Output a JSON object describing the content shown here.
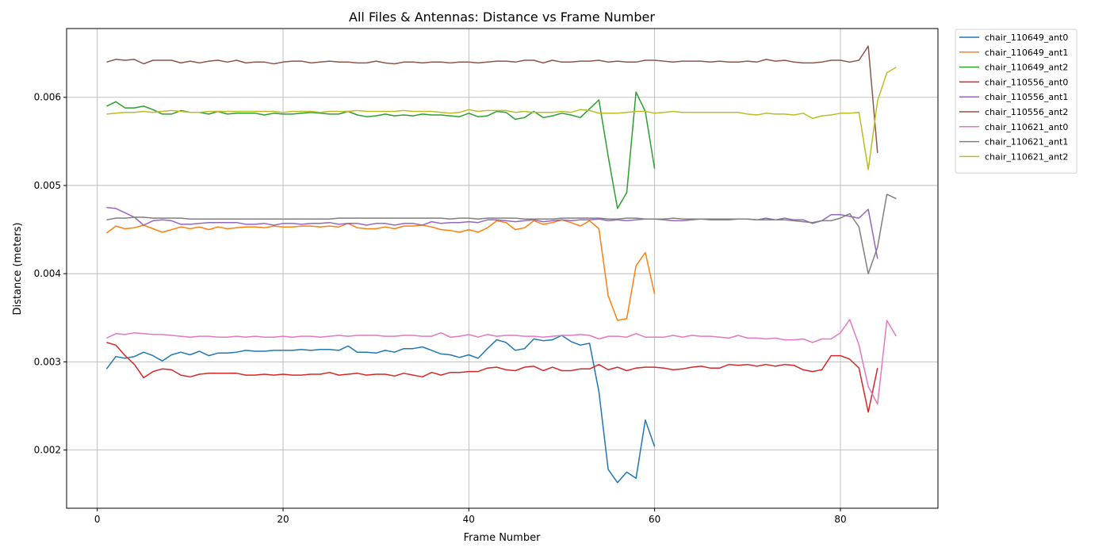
{
  "chart_data": {
    "type": "line",
    "title": "All Files & Antennas: Distance vs Frame Number",
    "xlabel": "Frame Number",
    "ylabel": "Distance (meters)",
    "xlim": [
      -3.3,
      90.5
    ],
    "ylim": [
      0.00134,
      0.00678
    ],
    "xticks": [
      0,
      20,
      40,
      60,
      80
    ],
    "yticks": [
      0.002,
      0.003,
      0.004,
      0.005,
      0.006
    ],
    "xtick_labels": [
      "0",
      "20",
      "40",
      "60",
      "80"
    ],
    "ytick_labels": [
      "0.002",
      "0.003",
      "0.004",
      "0.005",
      "0.006"
    ],
    "grid": true,
    "legend_position": "outside-top-right",
    "series": [
      {
        "name": "chair_110649_ant0",
        "color": "#1f77b4",
        "x_start": 1,
        "values": [
          0.00292,
          0.00306,
          0.00304,
          0.00306,
          0.00311,
          0.00307,
          0.00301,
          0.00308,
          0.00311,
          0.00308,
          0.00312,
          0.00307,
          0.0031,
          0.0031,
          0.00311,
          0.00313,
          0.00312,
          0.00312,
          0.00313,
          0.00313,
          0.00313,
          0.00314,
          0.00313,
          0.00314,
          0.00314,
          0.00313,
          0.00318,
          0.00311,
          0.00311,
          0.0031,
          0.00313,
          0.00311,
          0.00315,
          0.00315,
          0.00317,
          0.00313,
          0.00309,
          0.00308,
          0.00305,
          0.00308,
          0.00304,
          0.00315,
          0.00325,
          0.00322,
          0.00313,
          0.00315,
          0.00326,
          0.00324,
          0.00325,
          0.0033,
          0.00323,
          0.00319,
          0.00321,
          0.00266,
          0.00178,
          0.00163,
          0.00175,
          0.00168,
          0.00234,
          0.00204
        ]
      },
      {
        "name": "chair_110649_ant1",
        "color": "#ff7f0e",
        "x_start": 1,
        "values": [
          0.00446,
          0.00454,
          0.00451,
          0.00452,
          0.00455,
          0.00451,
          0.00447,
          0.0045,
          0.00453,
          0.00451,
          0.00453,
          0.0045,
          0.00453,
          0.00451,
          0.00452,
          0.00453,
          0.00453,
          0.00452,
          0.00454,
          0.00453,
          0.00453,
          0.00454,
          0.00454,
          0.00453,
          0.00454,
          0.00453,
          0.00457,
          0.00452,
          0.00451,
          0.00451,
          0.00453,
          0.00451,
          0.00454,
          0.00454,
          0.00455,
          0.00453,
          0.0045,
          0.00449,
          0.00447,
          0.0045,
          0.00447,
          0.00452,
          0.0046,
          0.00458,
          0.0045,
          0.00452,
          0.0046,
          0.00456,
          0.00458,
          0.00461,
          0.00458,
          0.00454,
          0.0046,
          0.00451,
          0.00375,
          0.00347,
          0.00349,
          0.00409,
          0.00424,
          0.00377
        ]
      },
      {
        "name": "chair_110649_ant2",
        "color": "#2ca02c",
        "x_start": 1,
        "values": [
          0.0059,
          0.00595,
          0.00588,
          0.00588,
          0.0059,
          0.00586,
          0.00581,
          0.00581,
          0.00585,
          0.00583,
          0.00583,
          0.00581,
          0.00584,
          0.00581,
          0.00582,
          0.00582,
          0.00582,
          0.0058,
          0.00582,
          0.00581,
          0.00581,
          0.00582,
          0.00583,
          0.00582,
          0.00581,
          0.00581,
          0.00584,
          0.0058,
          0.00578,
          0.00579,
          0.00581,
          0.00579,
          0.0058,
          0.00579,
          0.00581,
          0.0058,
          0.0058,
          0.00579,
          0.00578,
          0.00582,
          0.00578,
          0.00579,
          0.00584,
          0.00583,
          0.00575,
          0.00577,
          0.00584,
          0.00577,
          0.00579,
          0.00582,
          0.0058,
          0.00577,
          0.00587,
          0.00597,
          0.00533,
          0.00474,
          0.00492,
          0.00606,
          0.00584,
          0.00519
        ]
      },
      {
        "name": "chair_110556_ant0",
        "color": "#d62728",
        "x_start": 1,
        "values": [
          0.00322,
          0.00319,
          0.00307,
          0.00297,
          0.00282,
          0.00289,
          0.00292,
          0.00291,
          0.00285,
          0.00283,
          0.00286,
          0.00287,
          0.00287,
          0.00287,
          0.00287,
          0.00285,
          0.00285,
          0.00286,
          0.00285,
          0.00286,
          0.00285,
          0.00285,
          0.00286,
          0.00286,
          0.00288,
          0.00285,
          0.00286,
          0.00287,
          0.00285,
          0.00286,
          0.00286,
          0.00284,
          0.00287,
          0.00285,
          0.00283,
          0.00288,
          0.00285,
          0.00288,
          0.00288,
          0.00289,
          0.00289,
          0.00293,
          0.00294,
          0.00291,
          0.0029,
          0.00294,
          0.00295,
          0.0029,
          0.00294,
          0.0029,
          0.0029,
          0.00292,
          0.00292,
          0.00297,
          0.00291,
          0.00294,
          0.0029,
          0.00293,
          0.00294,
          0.00294,
          0.00293,
          0.00291,
          0.00292,
          0.00294,
          0.00295,
          0.00293,
          0.00293,
          0.00297,
          0.00296,
          0.00297,
          0.00295,
          0.00297,
          0.00295,
          0.00297,
          0.00296,
          0.00291,
          0.00289,
          0.00291,
          0.00307,
          0.00307,
          0.00303,
          0.00293,
          0.00243,
          0.00293
        ]
      },
      {
        "name": "chair_110556_ant1",
        "color": "#9467bd",
        "x_start": 1,
        "values": [
          0.00475,
          0.00474,
          0.00469,
          0.00464,
          0.00455,
          0.0046,
          0.00461,
          0.0046,
          0.00456,
          0.00456,
          0.00457,
          0.00458,
          0.00458,
          0.00458,
          0.00458,
          0.00456,
          0.00456,
          0.00457,
          0.00455,
          0.00457,
          0.00457,
          0.00456,
          0.00457,
          0.00457,
          0.00458,
          0.00456,
          0.00457,
          0.00457,
          0.00455,
          0.00457,
          0.00457,
          0.00455,
          0.00457,
          0.00457,
          0.00455,
          0.00459,
          0.00457,
          0.00458,
          0.00458,
          0.00459,
          0.00458,
          0.00461,
          0.00461,
          0.0046,
          0.00459,
          0.0046,
          0.00461,
          0.00459,
          0.0046,
          0.00461,
          0.0046,
          0.00461,
          0.00461,
          0.00462,
          0.0046,
          0.00461,
          0.0046,
          0.00461,
          0.00462,
          0.00462,
          0.00461,
          0.0046,
          0.0046,
          0.00461,
          0.00462,
          0.00461,
          0.00461,
          0.00461,
          0.00462,
          0.00462,
          0.00461,
          0.00463,
          0.00461,
          0.00463,
          0.00461,
          0.00461,
          0.00457,
          0.0046,
          0.00467,
          0.00467,
          0.00465,
          0.00463,
          0.00473,
          0.00417
        ]
      },
      {
        "name": "chair_110556_ant2",
        "color": "#8c564b",
        "x_start": 1,
        "values": [
          0.0064,
          0.00643,
          0.00642,
          0.00643,
          0.00638,
          0.00642,
          0.00642,
          0.00642,
          0.00639,
          0.00641,
          0.00639,
          0.00641,
          0.00642,
          0.0064,
          0.00642,
          0.00639,
          0.0064,
          0.0064,
          0.00638,
          0.0064,
          0.00641,
          0.00641,
          0.00639,
          0.0064,
          0.00641,
          0.0064,
          0.0064,
          0.00639,
          0.00639,
          0.00641,
          0.00639,
          0.00638,
          0.0064,
          0.0064,
          0.00639,
          0.0064,
          0.0064,
          0.00639,
          0.0064,
          0.0064,
          0.00639,
          0.0064,
          0.00641,
          0.00641,
          0.0064,
          0.00642,
          0.00642,
          0.00639,
          0.00642,
          0.0064,
          0.0064,
          0.00641,
          0.00641,
          0.00642,
          0.0064,
          0.00641,
          0.0064,
          0.0064,
          0.00642,
          0.00642,
          0.00641,
          0.0064,
          0.00641,
          0.00641,
          0.00641,
          0.0064,
          0.00641,
          0.0064,
          0.0064,
          0.00641,
          0.0064,
          0.00643,
          0.00641,
          0.00642,
          0.0064,
          0.00639,
          0.00639,
          0.0064,
          0.00642,
          0.00642,
          0.0064,
          0.00642,
          0.00658,
          0.00537
        ]
      },
      {
        "name": "chair_110621_ant0",
        "color": "#e377c2",
        "x_start": 1,
        "values": [
          0.00327,
          0.00332,
          0.00331,
          0.00333,
          0.00332,
          0.00331,
          0.00331,
          0.0033,
          0.00329,
          0.00328,
          0.00329,
          0.00329,
          0.00328,
          0.00328,
          0.00329,
          0.00328,
          0.00329,
          0.00328,
          0.00328,
          0.00329,
          0.00328,
          0.00329,
          0.00329,
          0.00328,
          0.00329,
          0.0033,
          0.00329,
          0.0033,
          0.0033,
          0.0033,
          0.00329,
          0.00329,
          0.0033,
          0.0033,
          0.00329,
          0.00329,
          0.00333,
          0.00328,
          0.00329,
          0.00331,
          0.00328,
          0.00331,
          0.00329,
          0.0033,
          0.0033,
          0.00329,
          0.00329,
          0.00328,
          0.00329,
          0.0033,
          0.0033,
          0.00331,
          0.0033,
          0.00326,
          0.00329,
          0.00329,
          0.00328,
          0.00332,
          0.00328,
          0.00328,
          0.00328,
          0.0033,
          0.00328,
          0.0033,
          0.00329,
          0.00329,
          0.00328,
          0.00327,
          0.0033,
          0.00327,
          0.00327,
          0.00326,
          0.00327,
          0.00325,
          0.00325,
          0.00326,
          0.00322,
          0.00326,
          0.00326,
          0.00333,
          0.00348,
          0.00319,
          0.00272,
          0.00252,
          0.00347,
          0.00329
        ]
      },
      {
        "name": "chair_110621_ant1",
        "color": "#7f7f7f",
        "x_start": 1,
        "values": [
          0.00461,
          0.00463,
          0.00463,
          0.00464,
          0.00464,
          0.00463,
          0.00463,
          0.00463,
          0.00463,
          0.00462,
          0.00462,
          0.00462,
          0.00462,
          0.00462,
          0.00462,
          0.00462,
          0.00462,
          0.00462,
          0.00462,
          0.00462,
          0.00462,
          0.00462,
          0.00462,
          0.00462,
          0.00462,
          0.00463,
          0.00463,
          0.00463,
          0.00463,
          0.00463,
          0.00463,
          0.00463,
          0.00463,
          0.00463,
          0.00463,
          0.00463,
          0.00463,
          0.00462,
          0.00463,
          0.00463,
          0.00462,
          0.00463,
          0.00463,
          0.00463,
          0.00463,
          0.00462,
          0.00462,
          0.00462,
          0.00462,
          0.00463,
          0.00463,
          0.00463,
          0.00463,
          0.00463,
          0.00462,
          0.00462,
          0.00463,
          0.00463,
          0.00462,
          0.00462,
          0.00462,
          0.00463,
          0.00462,
          0.00462,
          0.00462,
          0.00462,
          0.00462,
          0.00462,
          0.00462,
          0.00462,
          0.00461,
          0.00461,
          0.00461,
          0.00461,
          0.0046,
          0.00459,
          0.00458,
          0.0046,
          0.0046,
          0.00463,
          0.00468,
          0.00453,
          0.004,
          0.0043,
          0.0049,
          0.00485
        ]
      },
      {
        "name": "chair_110621_ant2",
        "color": "#bcbd22",
        "x_start": 1,
        "values": [
          0.00581,
          0.00582,
          0.00583,
          0.00583,
          0.00584,
          0.00583,
          0.00584,
          0.00585,
          0.00584,
          0.00583,
          0.00583,
          0.00584,
          0.00584,
          0.00584,
          0.00584,
          0.00584,
          0.00584,
          0.00584,
          0.00584,
          0.00583,
          0.00584,
          0.00584,
          0.00584,
          0.00583,
          0.00584,
          0.00584,
          0.00584,
          0.00585,
          0.00584,
          0.00584,
          0.00584,
          0.00584,
          0.00585,
          0.00584,
          0.00584,
          0.00584,
          0.00583,
          0.00582,
          0.00583,
          0.00586,
          0.00584,
          0.00585,
          0.00585,
          0.00585,
          0.00583,
          0.00584,
          0.00583,
          0.00583,
          0.00583,
          0.00584,
          0.00583,
          0.00586,
          0.00585,
          0.00582,
          0.00582,
          0.00582,
          0.00583,
          0.00584,
          0.00584,
          0.00582,
          0.00583,
          0.00584,
          0.00583,
          0.00583,
          0.00583,
          0.00583,
          0.00583,
          0.00583,
          0.00583,
          0.00581,
          0.0058,
          0.00582,
          0.00581,
          0.00581,
          0.0058,
          0.00582,
          0.00576,
          0.00579,
          0.0058,
          0.00582,
          0.00582,
          0.00583,
          0.00518,
          0.00596,
          0.00628,
          0.00634
        ]
      }
    ]
  }
}
